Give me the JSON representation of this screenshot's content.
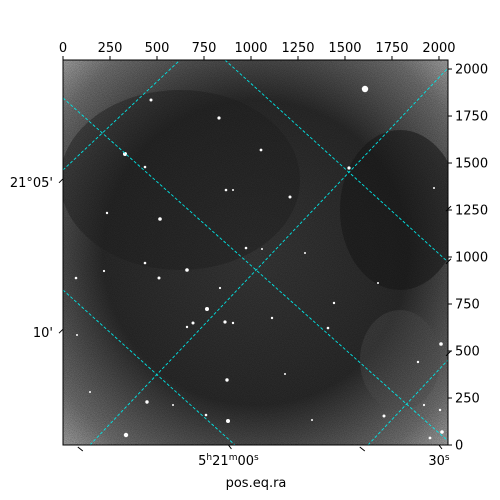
{
  "colors": {
    "frame": "#000000",
    "grid": "#00e5e5",
    "sky_background": "#3a3a3a",
    "star": "#ffffff"
  },
  "image": {
    "x_range": [
      0,
      2048
    ],
    "y_range": [
      0,
      2048
    ],
    "x_ticks": [
      0,
      250,
      500,
      750,
      1000,
      1250,
      1500,
      1750,
      2000
    ],
    "y_ticks": [
      0,
      250,
      500,
      750,
      1000,
      1250,
      1500,
      1750,
      2000
    ]
  },
  "wcs": {
    "xlabel": "pos.eq.ra",
    "ra_ticks": [
      {
        "value": 880,
        "label": "5h21m00s"
      },
      {
        "value": 2000,
        "label": "30s"
      }
    ],
    "dec_ticks": [
      {
        "value": 1400,
        "label": "21°05'"
      },
      {
        "value": 600,
        "label": "10'"
      }
    ]
  }
}
